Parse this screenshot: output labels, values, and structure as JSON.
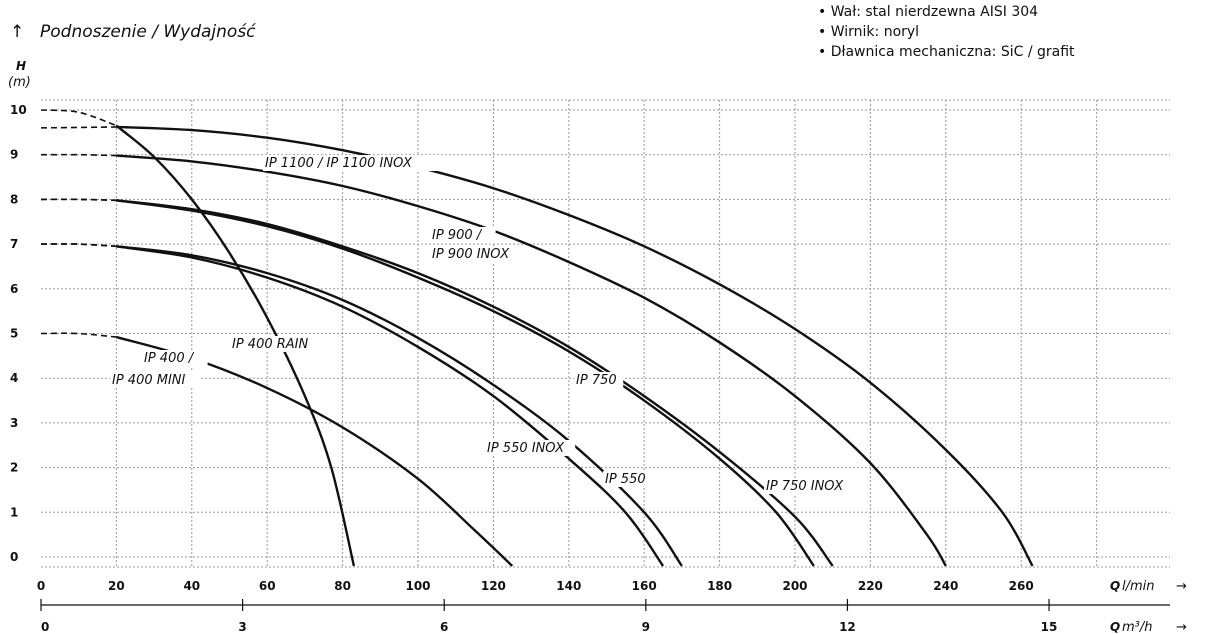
{
  "header": {
    "title": "Podnoszenie / Wydajność",
    "features": [
      "Wał: stal nierdzewna AISI 304",
      "Wirnik: noryl",
      "Dławnica mechaniczna: SiC / grafit"
    ]
  },
  "chart_data": {
    "type": "line",
    "ylabel": "H",
    "yunit": "(m)",
    "xlabel": "Q",
    "xunit": "l/min",
    "x2label": "Q",
    "x2unit": "m³/h",
    "xlim": [
      0,
      280
    ],
    "ylim": [
      0,
      10
    ],
    "x2lim": [
      0,
      16.8
    ],
    "yticks": [
      0,
      1,
      2,
      3,
      4,
      5,
      6,
      7,
      8,
      9,
      10
    ],
    "xticks": [
      0,
      20,
      40,
      60,
      80,
      100,
      120,
      140,
      160,
      180,
      200,
      220,
      240,
      260
    ],
    "x2ticks": [
      0,
      3,
      6,
      9,
      12,
      15
    ],
    "grid": true,
    "series": [
      {
        "name": "IP 400 / IP 400 MINI",
        "label_lines": [
          "IP 400 /",
          "IP 400 MINI"
        ],
        "dash_end": 20,
        "points": [
          [
            0,
            5
          ],
          [
            10,
            5
          ],
          [
            20,
            4.92
          ],
          [
            40,
            4.45
          ],
          [
            60,
            3.78
          ],
          [
            80,
            2.9
          ],
          [
            100,
            1.75
          ],
          [
            115,
            0.6
          ],
          [
            125,
            -0.2
          ]
        ]
      },
      {
        "name": "IP 400 RAIN",
        "label_lines": [
          "IP 400 RAIN"
        ],
        "dash_end": 20,
        "points": [
          [
            0,
            10
          ],
          [
            10,
            9.95
          ],
          [
            20,
            9.65
          ],
          [
            30,
            8.95
          ],
          [
            40,
            8.0
          ],
          [
            50,
            6.8
          ],
          [
            60,
            5.35
          ],
          [
            70,
            3.6
          ],
          [
            77,
            2.0
          ],
          [
            83,
            -0.2
          ]
        ]
      },
      {
        "name": "IP 550 INOX",
        "label_lines": [
          "IP 550 INOX"
        ],
        "dash_end": 20,
        "points": [
          [
            0,
            7
          ],
          [
            10,
            7
          ],
          [
            20,
            6.95
          ],
          [
            40,
            6.7
          ],
          [
            60,
            6.25
          ],
          [
            80,
            5.6
          ],
          [
            100,
            4.7
          ],
          [
            120,
            3.6
          ],
          [
            140,
            2.2
          ],
          [
            155,
            1.0
          ],
          [
            165,
            -0.2
          ]
        ]
      },
      {
        "name": "IP 550",
        "label_lines": [
          "IP 550"
        ],
        "dash_end": 20,
        "points": [
          [
            0,
            7
          ],
          [
            10,
            7
          ],
          [
            20,
            6.95
          ],
          [
            40,
            6.75
          ],
          [
            60,
            6.35
          ],
          [
            80,
            5.75
          ],
          [
            100,
            4.9
          ],
          [
            120,
            3.85
          ],
          [
            140,
            2.6
          ],
          [
            160,
            1.0
          ],
          [
            170,
            -0.2
          ]
        ]
      },
      {
        "name": "IP 750",
        "label_lines": [
          "IP 750"
        ],
        "dash_end": 20,
        "points": [
          [
            0,
            8
          ],
          [
            10,
            8
          ],
          [
            20,
            7.98
          ],
          [
            40,
            7.75
          ],
          [
            60,
            7.4
          ],
          [
            80,
            6.9
          ],
          [
            100,
            6.25
          ],
          [
            120,
            5.5
          ],
          [
            140,
            4.6
          ],
          [
            160,
            3.5
          ],
          [
            180,
            2.2
          ],
          [
            195,
            1.0
          ],
          [
            205,
            -0.2
          ]
        ]
      },
      {
        "name": "IP 750 INOX",
        "label_lines": [
          "IP 750 INOX"
        ],
        "dash_end": 20,
        "points": [
          [
            0,
            8
          ],
          [
            10,
            8
          ],
          [
            20,
            7.98
          ],
          [
            40,
            7.78
          ],
          [
            60,
            7.45
          ],
          [
            80,
            6.95
          ],
          [
            100,
            6.35
          ],
          [
            120,
            5.6
          ],
          [
            140,
            4.7
          ],
          [
            160,
            3.6
          ],
          [
            180,
            2.35
          ],
          [
            200,
            0.9
          ],
          [
            210,
            -0.2
          ]
        ]
      },
      {
        "name": "IP 900 / IP 900 INOX",
        "label_lines": [
          "IP 900 /",
          "IP 900 INOX"
        ],
        "dash_end": 20,
        "points": [
          [
            0,
            9
          ],
          [
            10,
            9
          ],
          [
            20,
            8.98
          ],
          [
            40,
            8.85
          ],
          [
            60,
            8.62
          ],
          [
            80,
            8.3
          ],
          [
            100,
            7.85
          ],
          [
            120,
            7.3
          ],
          [
            140,
            6.6
          ],
          [
            160,
            5.8
          ],
          [
            180,
            4.8
          ],
          [
            200,
            3.6
          ],
          [
            220,
            2.1
          ],
          [
            235,
            0.5
          ],
          [
            240,
            -0.2
          ]
        ]
      },
      {
        "name": "IP 1100 / IP 1100 INOX",
        "label_lines": [
          "IP 1100 / IP 1100 INOX"
        ],
        "dash_end": 35,
        "points": [
          [
            0,
            9.6
          ],
          [
            20,
            9.62
          ],
          [
            40,
            9.55
          ],
          [
            60,
            9.38
          ],
          [
            80,
            9.1
          ],
          [
            100,
            8.72
          ],
          [
            120,
            8.25
          ],
          [
            140,
            7.65
          ],
          [
            160,
            6.95
          ],
          [
            180,
            6.1
          ],
          [
            200,
            5.1
          ],
          [
            220,
            3.9
          ],
          [
            240,
            2.4
          ],
          [
            255,
            1.0
          ],
          [
            263,
            -0.2
          ]
        ]
      }
    ]
  }
}
